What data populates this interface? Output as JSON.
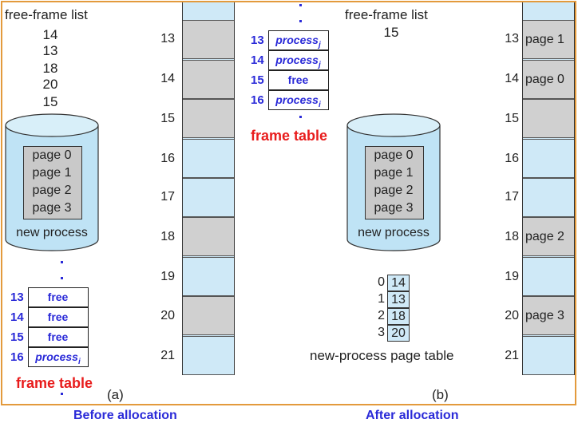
{
  "before": {
    "free_frame_list": {
      "title": "free-frame list",
      "frames": [
        "14",
        "13",
        "18",
        "20",
        "15"
      ]
    },
    "disk": {
      "pages": [
        "page 0",
        "page 1",
        "page 2",
        "page 3"
      ],
      "label": "new process"
    },
    "memory": {
      "frames": [
        {
          "num": "13",
          "state": "gray",
          "label": ""
        },
        {
          "num": "14",
          "state": "gray",
          "label": ""
        },
        {
          "num": "15",
          "state": "gray",
          "label": ""
        },
        {
          "num": "16",
          "state": "blue",
          "label": ""
        },
        {
          "num": "17",
          "state": "blue",
          "label": ""
        },
        {
          "num": "18",
          "state": "gray",
          "label": ""
        },
        {
          "num": "19",
          "state": "blue",
          "label": ""
        },
        {
          "num": "20",
          "state": "gray",
          "label": ""
        },
        {
          "num": "21",
          "state": "blue",
          "label": ""
        }
      ]
    },
    "frame_table": {
      "title": "frame table",
      "rows": [
        {
          "num": "13",
          "value": "free",
          "italic": false
        },
        {
          "num": "14",
          "value": "free",
          "italic": false
        },
        {
          "num": "15",
          "value": "free",
          "italic": false
        },
        {
          "num": "16",
          "value": "process",
          "sub": "i",
          "italic": true
        }
      ]
    },
    "panel_label": "(a)",
    "caption": "Before allocation"
  },
  "after": {
    "free_frame_list": {
      "title": "free-frame list",
      "frames": [
        "15"
      ]
    },
    "disk": {
      "pages": [
        "page 0",
        "page 1",
        "page 2",
        "page 3"
      ],
      "label": "new process"
    },
    "memory": {
      "frames": [
        {
          "num": "13",
          "state": "gray",
          "label": "page 1"
        },
        {
          "num": "14",
          "state": "gray",
          "label": "page 0"
        },
        {
          "num": "15",
          "state": "gray",
          "label": ""
        },
        {
          "num": "16",
          "state": "blue",
          "label": ""
        },
        {
          "num": "17",
          "state": "blue",
          "label": ""
        },
        {
          "num": "18",
          "state": "gray",
          "label": "page 2"
        },
        {
          "num": "19",
          "state": "blue",
          "label": ""
        },
        {
          "num": "20",
          "state": "gray",
          "label": "page 3"
        },
        {
          "num": "21",
          "state": "blue",
          "label": ""
        }
      ]
    },
    "frame_table": {
      "title": "frame table",
      "rows": [
        {
          "num": "13",
          "value": "process",
          "sub": "j",
          "italic": true
        },
        {
          "num": "14",
          "value": "process",
          "sub": "j",
          "italic": true
        },
        {
          "num": "15",
          "value": "free",
          "italic": false
        },
        {
          "num": "16",
          "value": "process",
          "sub": "i",
          "italic": true
        }
      ]
    },
    "page_table": {
      "title": "new-process page table",
      "entries": [
        {
          "index": "0",
          "frame": "14"
        },
        {
          "index": "1",
          "frame": "13"
        },
        {
          "index": "2",
          "frame": "18"
        },
        {
          "index": "3",
          "frame": "20"
        }
      ]
    },
    "panel_label": "(b)",
    "caption": "After allocation"
  },
  "colors": {
    "border": "#e39a3c",
    "frame_used": "#d0d0d0",
    "frame_free": "#cfe9f7",
    "table_text": "#2a2ad8",
    "frame_table_title": "#e81c1c"
  }
}
